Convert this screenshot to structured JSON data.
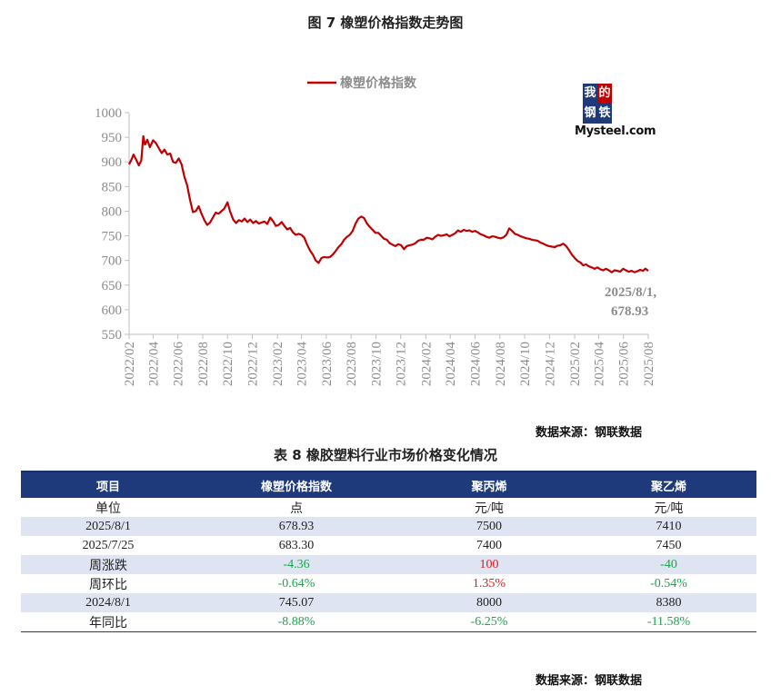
{
  "figure": {
    "title": "图 7   橡塑价格指数走势图"
  },
  "chart_data": {
    "type": "line",
    "title": "",
    "legend": "橡塑价格指数",
    "series_color": "#c00000",
    "ylim": [
      550,
      1000
    ],
    "yticks": [
      550,
      600,
      650,
      700,
      750,
      800,
      850,
      900,
      950,
      1000
    ],
    "xticks": [
      "2022/02",
      "2022/04",
      "2022/06",
      "2022/08",
      "2022/10",
      "2022/12",
      "2023/02",
      "2023/04",
      "2023/06",
      "2023/08",
      "2023/10",
      "2023/12",
      "2024/02",
      "2024/04",
      "2024/06",
      "2024/08",
      "2024/10",
      "2024/12",
      "2025/02",
      "2025/04",
      "2025/06",
      "2025/08"
    ],
    "x_start": "2022/02",
    "x_end": "2025/08",
    "grid": false,
    "legend_position": "top",
    "series": [
      {
        "name": "橡塑价格指数",
        "points": [
          [
            "2022-02-01",
            895
          ],
          [
            "2022-02-07",
            905
          ],
          [
            "2022-02-12",
            915
          ],
          [
            "2022-02-18",
            905
          ],
          [
            "2022-02-25",
            893
          ],
          [
            "2022-03-03",
            903
          ],
          [
            "2022-03-08",
            952
          ],
          [
            "2022-03-12",
            935
          ],
          [
            "2022-03-18",
            945
          ],
          [
            "2022-03-24",
            930
          ],
          [
            "2022-04-01",
            944
          ],
          [
            "2022-04-08",
            938
          ],
          [
            "2022-04-15",
            928
          ],
          [
            "2022-04-22",
            918
          ],
          [
            "2022-04-29",
            925
          ],
          [
            "2022-05-06",
            915
          ],
          [
            "2022-05-13",
            917
          ],
          [
            "2022-05-20",
            900
          ],
          [
            "2022-05-27",
            898
          ],
          [
            "2022-06-03",
            907
          ],
          [
            "2022-06-10",
            895
          ],
          [
            "2022-06-17",
            870
          ],
          [
            "2022-06-24",
            852
          ],
          [
            "2022-07-01",
            822
          ],
          [
            "2022-07-08",
            798
          ],
          [
            "2022-07-15",
            800
          ],
          [
            "2022-07-22",
            810
          ],
          [
            "2022-07-29",
            795
          ],
          [
            "2022-08-05",
            782
          ],
          [
            "2022-08-12",
            772
          ],
          [
            "2022-08-19",
            777
          ],
          [
            "2022-08-26",
            787
          ],
          [
            "2022-09-02",
            797
          ],
          [
            "2022-09-09",
            795
          ],
          [
            "2022-09-16",
            800
          ],
          [
            "2022-09-23",
            805
          ],
          [
            "2022-10-01",
            818
          ],
          [
            "2022-10-08",
            798
          ],
          [
            "2022-10-15",
            783
          ],
          [
            "2022-10-22",
            776
          ],
          [
            "2022-10-29",
            782
          ],
          [
            "2022-11-05",
            779
          ],
          [
            "2022-11-12",
            785
          ],
          [
            "2022-11-19",
            778
          ],
          [
            "2022-11-26",
            783
          ],
          [
            "2022-12-03",
            776
          ],
          [
            "2022-12-10",
            780
          ],
          [
            "2022-12-17",
            775
          ],
          [
            "2022-12-24",
            777
          ],
          [
            "2022-12-31",
            779
          ],
          [
            "2023-01-07",
            774
          ],
          [
            "2023-01-14",
            787
          ],
          [
            "2023-01-21",
            780
          ],
          [
            "2023-01-28",
            770
          ],
          [
            "2023-02-04",
            772
          ],
          [
            "2023-02-11",
            778
          ],
          [
            "2023-02-18",
            770
          ],
          [
            "2023-02-25",
            763
          ],
          [
            "2023-03-04",
            766
          ],
          [
            "2023-03-11",
            757
          ],
          [
            "2023-03-18",
            752
          ],
          [
            "2023-03-25",
            754
          ],
          [
            "2023-04-01",
            752
          ],
          [
            "2023-04-08",
            746
          ],
          [
            "2023-04-15",
            732
          ],
          [
            "2023-04-22",
            720
          ],
          [
            "2023-04-29",
            712
          ],
          [
            "2023-05-06",
            700
          ],
          [
            "2023-05-13",
            695
          ],
          [
            "2023-05-20",
            705
          ],
          [
            "2023-05-27",
            707
          ],
          [
            "2023-06-03",
            706
          ],
          [
            "2023-06-10",
            707
          ],
          [
            "2023-06-17",
            712
          ],
          [
            "2023-06-24",
            719
          ],
          [
            "2023-07-01",
            727
          ],
          [
            "2023-07-08",
            733
          ],
          [
            "2023-07-15",
            742
          ],
          [
            "2023-07-22",
            748
          ],
          [
            "2023-07-29",
            752
          ],
          [
            "2023-08-05",
            760
          ],
          [
            "2023-08-12",
            775
          ],
          [
            "2023-08-19",
            785
          ],
          [
            "2023-08-26",
            789
          ],
          [
            "2023-09-02",
            786
          ],
          [
            "2023-09-09",
            775
          ],
          [
            "2023-09-16",
            768
          ],
          [
            "2023-09-23",
            762
          ],
          [
            "2023-09-30",
            756
          ],
          [
            "2023-10-07",
            756
          ],
          [
            "2023-10-14",
            750
          ],
          [
            "2023-10-21",
            744
          ],
          [
            "2023-10-28",
            742
          ],
          [
            "2023-11-04",
            735
          ],
          [
            "2023-11-11",
            732
          ],
          [
            "2023-11-18",
            729
          ],
          [
            "2023-11-25",
            733
          ],
          [
            "2023-12-02",
            731
          ],
          [
            "2023-12-09",
            723
          ],
          [
            "2023-12-16",
            729
          ],
          [
            "2023-12-23",
            731
          ],
          [
            "2023-12-30",
            732
          ],
          [
            "2024-01-06",
            735
          ],
          [
            "2024-01-13",
            740
          ],
          [
            "2024-01-20",
            742
          ],
          [
            "2024-01-27",
            742
          ],
          [
            "2024-02-03",
            746
          ],
          [
            "2024-02-10",
            745
          ],
          [
            "2024-02-17",
            743
          ],
          [
            "2024-02-24",
            748
          ],
          [
            "2024-03-02",
            752
          ],
          [
            "2024-03-09",
            750
          ],
          [
            "2024-03-16",
            751
          ],
          [
            "2024-03-23",
            753
          ],
          [
            "2024-03-30",
            749
          ],
          [
            "2024-04-06",
            752
          ],
          [
            "2024-04-13",
            755
          ],
          [
            "2024-04-20",
            761
          ],
          [
            "2024-04-27",
            758
          ],
          [
            "2024-05-04",
            762
          ],
          [
            "2024-05-11",
            760
          ],
          [
            "2024-05-18",
            761
          ],
          [
            "2024-05-25",
            758
          ],
          [
            "2024-06-01",
            760
          ],
          [
            "2024-06-08",
            757
          ],
          [
            "2024-06-15",
            753
          ],
          [
            "2024-06-22",
            751
          ],
          [
            "2024-06-29",
            748
          ],
          [
            "2024-07-06",
            746
          ],
          [
            "2024-07-13",
            749
          ],
          [
            "2024-07-20",
            748
          ],
          [
            "2024-07-27",
            746
          ],
          [
            "2024-08-03",
            745
          ],
          [
            "2024-08-10",
            747
          ],
          [
            "2024-08-17",
            752
          ],
          [
            "2024-08-24",
            765
          ],
          [
            "2024-08-31",
            760
          ],
          [
            "2024-09-07",
            754
          ],
          [
            "2024-09-14",
            752
          ],
          [
            "2024-09-21",
            749
          ],
          [
            "2024-09-28",
            747
          ],
          [
            "2024-10-05",
            745
          ],
          [
            "2024-10-12",
            744
          ],
          [
            "2024-10-19",
            742
          ],
          [
            "2024-10-26",
            741
          ],
          [
            "2024-11-02",
            740
          ],
          [
            "2024-11-09",
            736
          ],
          [
            "2024-11-16",
            734
          ],
          [
            "2024-11-23",
            731
          ],
          [
            "2024-11-30",
            729
          ],
          [
            "2024-12-07",
            728
          ],
          [
            "2024-12-14",
            727
          ],
          [
            "2024-12-21",
            730
          ],
          [
            "2024-12-28",
            731
          ],
          [
            "2025-01-04",
            734
          ],
          [
            "2025-01-11",
            729
          ],
          [
            "2025-01-18",
            721
          ],
          [
            "2025-01-25",
            712
          ],
          [
            "2025-02-01",
            705
          ],
          [
            "2025-02-08",
            699
          ],
          [
            "2025-02-15",
            696
          ],
          [
            "2025-02-22",
            690
          ],
          [
            "2025-03-01",
            692
          ],
          [
            "2025-03-08",
            688
          ],
          [
            "2025-03-15",
            686
          ],
          [
            "2025-03-22",
            683
          ],
          [
            "2025-03-29",
            686
          ],
          [
            "2025-04-05",
            682
          ],
          [
            "2025-04-12",
            680
          ],
          [
            "2025-04-19",
            683
          ],
          [
            "2025-04-26",
            680
          ],
          [
            "2025-05-03",
            676
          ],
          [
            "2025-05-10",
            680
          ],
          [
            "2025-05-17",
            679
          ],
          [
            "2025-05-24",
            677
          ],
          [
            "2025-05-31",
            683
          ],
          [
            "2025-06-07",
            680
          ],
          [
            "2025-06-14",
            677
          ],
          [
            "2025-06-21",
            679
          ],
          [
            "2025-06-28",
            676
          ],
          [
            "2025-07-05",
            678
          ],
          [
            "2025-07-12",
            681
          ],
          [
            "2025-07-19",
            679
          ],
          [
            "2025-07-25",
            683.3
          ],
          [
            "2025-08-01",
            678.93
          ]
        ]
      }
    ],
    "annotation": {
      "line1": "2025/8/1,",
      "line2": "678.93"
    }
  },
  "logo": {
    "cn": [
      "我",
      "的",
      "钢",
      "铁"
    ],
    "en": "Mysteel.com"
  },
  "source_text": "数据来源：钢联数据",
  "table": {
    "title": "表 8 橡胶塑料行业市场价格变化情况",
    "headers": [
      "项目",
      "橡塑价格指数",
      "聚丙烯",
      "聚乙烯"
    ],
    "rows": [
      [
        "单位",
        "点",
        "元/吨",
        "元/吨"
      ],
      [
        "2025/8/1",
        "678.93",
        "7500",
        "7410"
      ],
      [
        "2025/7/25",
        "683.30",
        "7400",
        "7450"
      ],
      [
        "周涨跌",
        "-4.36",
        "100",
        "-40"
      ],
      [
        "周环比",
        "-0.64%",
        "1.35%",
        "-0.54%"
      ],
      [
        "2024/8/1",
        "745.07",
        "8000",
        "8380"
      ],
      [
        "年同比",
        "-8.88%",
        "-6.25%",
        "-11.58%"
      ]
    ],
    "colors": {
      "negative": "#1aa64a",
      "positive": "#d42020",
      "header_bg": "#1f3a7a"
    }
  }
}
